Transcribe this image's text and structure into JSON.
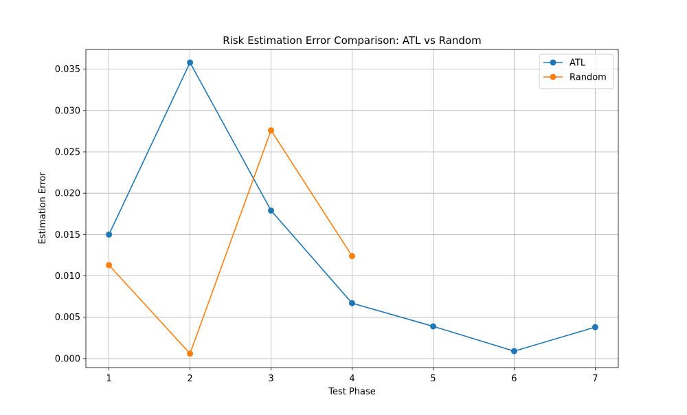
{
  "chart_data": {
    "type": "line",
    "title": "Risk Estimation Error Comparison: ATL vs Random",
    "xlabel": "Test Phase",
    "ylabel": "Estimation Error",
    "xlim": [
      0.715,
      7.285
    ],
    "ylim": [
      -0.00109,
      0.03738
    ],
    "x_ticks": [
      1,
      2,
      3,
      4,
      5,
      6,
      7
    ],
    "x_tick_labels": [
      "1",
      "2",
      "3",
      "4",
      "5",
      "6",
      "7"
    ],
    "y_ticks": [
      0.0,
      0.005,
      0.01,
      0.015,
      0.02,
      0.025,
      0.03,
      0.035
    ],
    "y_tick_labels": [
      "0.000",
      "0.005",
      "0.010",
      "0.015",
      "0.020",
      "0.025",
      "0.030",
      "0.035"
    ],
    "grid": true,
    "legend_position": "upper right",
    "series": [
      {
        "name": "ATL",
        "color": "#1f77b4",
        "marker": "circle",
        "x": [
          1,
          2,
          3,
          4,
          5,
          6,
          7
        ],
        "y": [
          0.015,
          0.0358,
          0.0179,
          0.0067,
          0.0039,
          0.0009,
          0.0038
        ]
      },
      {
        "name": "Random",
        "color": "#ff7f0e",
        "marker": "circle",
        "x": [
          1,
          2,
          3,
          4
        ],
        "y": [
          0.0113,
          0.0006,
          0.0276,
          0.0124
        ]
      }
    ]
  }
}
